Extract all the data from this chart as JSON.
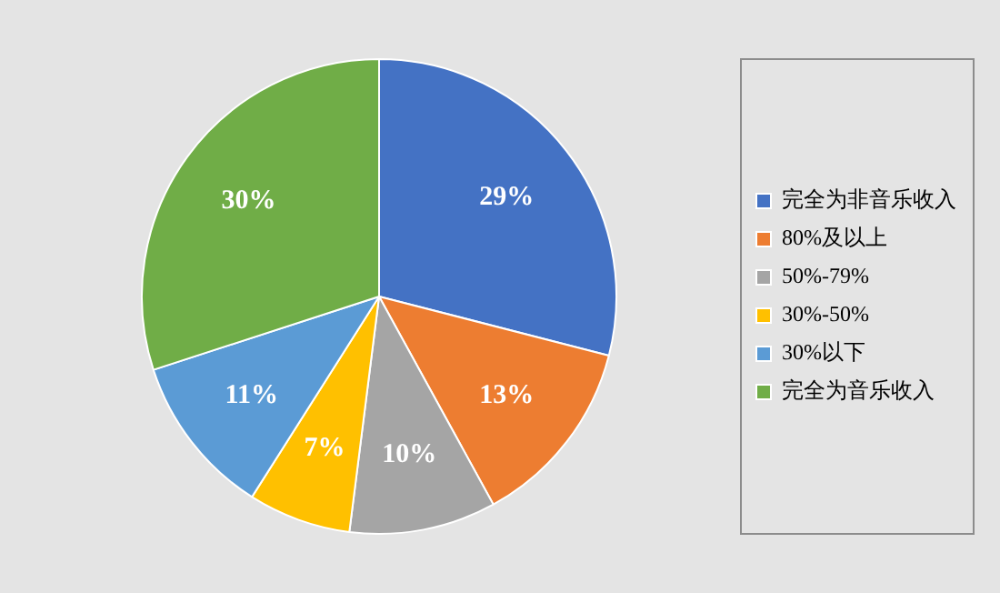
{
  "chart_data": {
    "type": "pie",
    "categories": [
      "完全为非音乐收入",
      "80%及以上",
      "50%-79%",
      "30%-50%",
      "30%以下",
      "完全为音乐收入"
    ],
    "values": [
      29,
      13,
      10,
      7,
      11,
      30
    ],
    "colors": [
      "#4472c4",
      "#ed7d31",
      "#a5a5a5",
      "#ffc000",
      "#5b9bd5",
      "#70ad47"
    ],
    "value_labels": [
      "29%",
      "13%",
      "10%",
      "7%",
      "11%",
      "30%"
    ],
    "legend": "right"
  }
}
